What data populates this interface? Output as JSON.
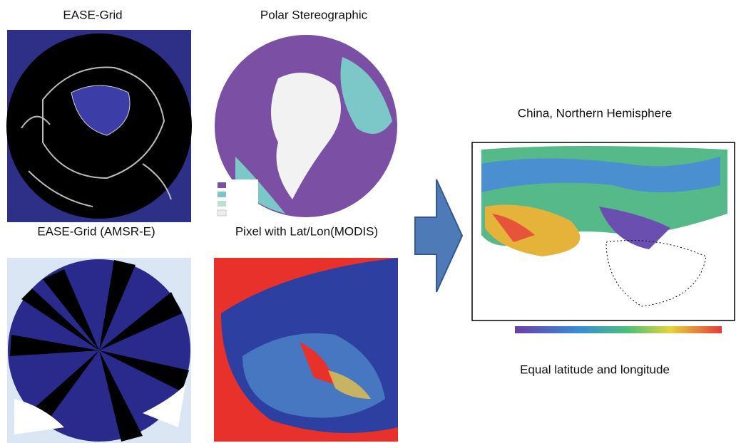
{
  "panels": [
    {
      "label": "EASE-Grid"
    },
    {
      "label": "Polar Stereographic"
    },
    {
      "label": "EASE-Grid (AMSR-E)"
    },
    {
      "label": "Pixel with Lat/Lon(MODIS)"
    }
  ],
  "result": {
    "title": "China, Northern Hemisphere",
    "caption": "Equal latitude and longitude"
  }
}
